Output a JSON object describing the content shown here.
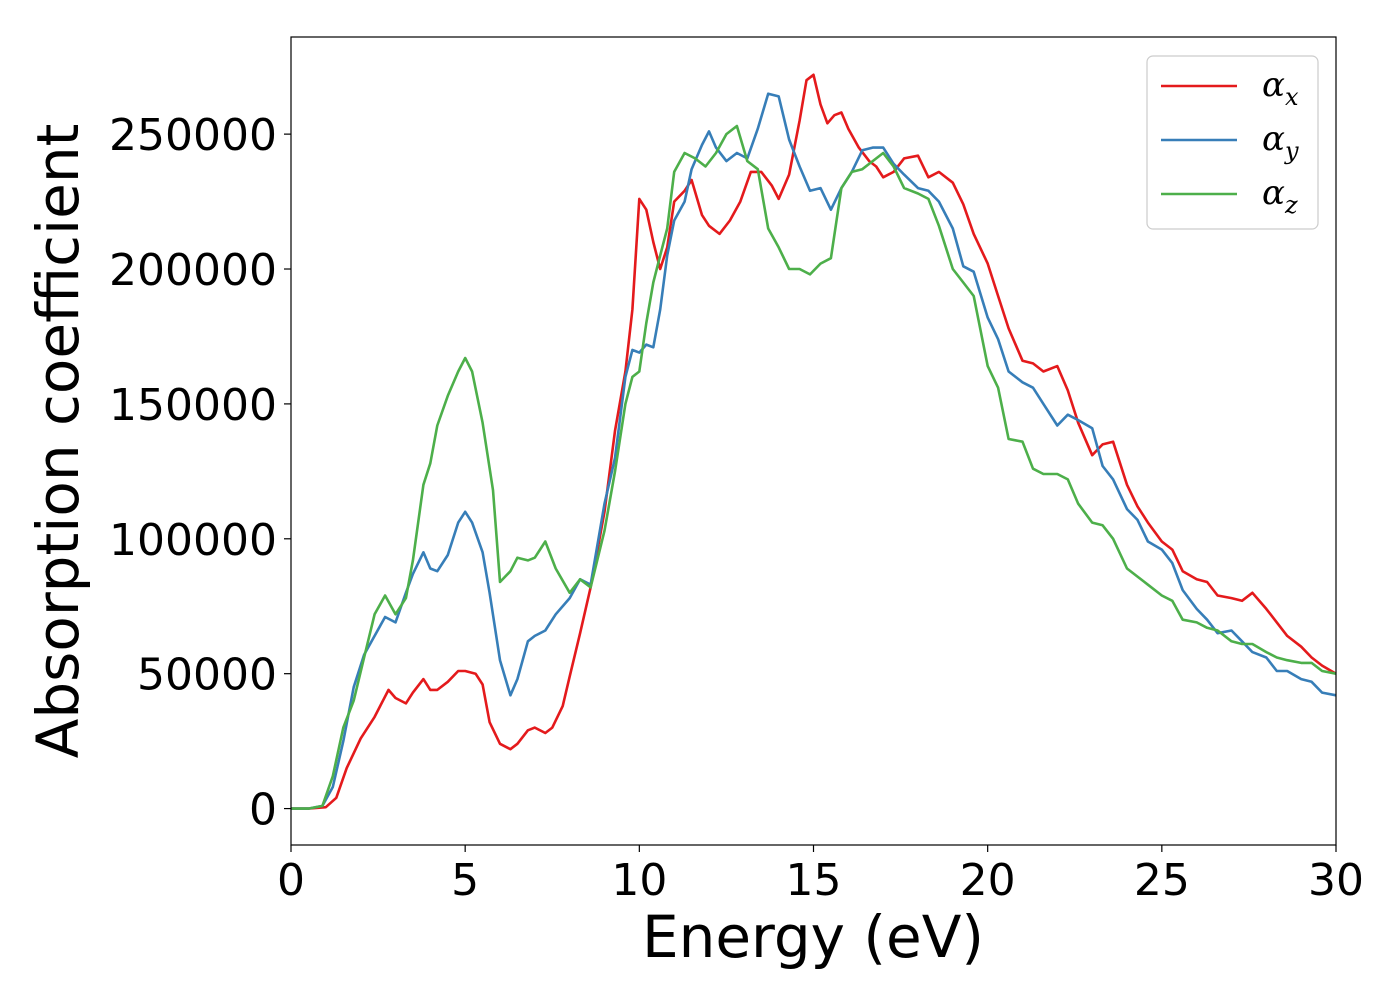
{
  "chart_data": {
    "type": "line",
    "title": "",
    "xlabel": "Energy (eV)",
    "ylabel": "Absorption coefficient",
    "xlim": [
      0,
      30
    ],
    "ylim": [
      -13500,
      286000
    ],
    "xticks": [
      0,
      5,
      10,
      15,
      20,
      25,
      30
    ],
    "yticks": [
      0,
      50000,
      100000,
      150000,
      200000,
      250000
    ],
    "grid": false,
    "legend": "top-right",
    "series": [
      {
        "name": "αx",
        "sym": "α",
        "sub": "x",
        "color": "#e41a1c",
        "x": [
          0,
          0.5,
          1.0,
          1.3,
          1.6,
          2.0,
          2.4,
          2.8,
          3.0,
          3.3,
          3.5,
          3.8,
          4.0,
          4.2,
          4.5,
          4.8,
          5.0,
          5.3,
          5.5,
          5.7,
          6.0,
          6.3,
          6.5,
          6.8,
          7.0,
          7.3,
          7.5,
          7.8,
          8.0,
          8.3,
          8.6,
          9.0,
          9.3,
          9.6,
          9.8,
          10.0,
          10.2,
          10.4,
          10.6,
          10.8,
          11.0,
          11.3,
          11.5,
          11.8,
          12.0,
          12.3,
          12.6,
          12.9,
          13.2,
          13.5,
          13.8,
          14.0,
          14.3,
          14.6,
          14.8,
          15.0,
          15.2,
          15.4,
          15.6,
          15.8,
          16.0,
          16.3,
          16.6,
          16.8,
          17.0,
          17.3,
          17.6,
          18.0,
          18.3,
          18.6,
          19.0,
          19.3,
          19.6,
          20.0,
          20.3,
          20.6,
          21.0,
          21.3,
          21.6,
          22.0,
          22.3,
          22.6,
          23.0,
          23.3,
          23.6,
          24.0,
          24.3,
          24.6,
          25.0,
          25.3,
          25.6,
          26.0,
          26.3,
          26.6,
          27.0,
          27.3,
          27.6,
          28.0,
          28.3,
          28.6,
          29.0,
          29.3,
          29.6,
          30.0
        ],
        "y": [
          0,
          0,
          500,
          4000,
          15000,
          26000,
          34000,
          44000,
          41000,
          39000,
          43000,
          48000,
          44000,
          44000,
          47000,
          51000,
          51000,
          50000,
          46000,
          32000,
          24000,
          22000,
          24000,
          29000,
          30000,
          28000,
          30000,
          38000,
          49000,
          65000,
          82000,
          110000,
          140000,
          162000,
          185000,
          226000,
          222000,
          210000,
          200000,
          208000,
          225000,
          229000,
          233000,
          220000,
          216000,
          213000,
          218000,
          225000,
          236000,
          236000,
          231000,
          226000,
          235000,
          255000,
          270000,
          272000,
          261000,
          254000,
          257000,
          258000,
          252000,
          245000,
          240000,
          238000,
          234000,
          236000,
          241000,
          242000,
          234000,
          236000,
          232000,
          224000,
          213000,
          202000,
          190000,
          178000,
          166000,
          165000,
          162000,
          164000,
          155000,
          143000,
          131000,
          135000,
          136000,
          120000,
          112000,
          106000,
          99000,
          96000,
          88000,
          85000,
          84000,
          79000,
          78000,
          77000,
          80000,
          74000,
          69000,
          64000,
          60000,
          56000,
          53000,
          50000
        ]
      },
      {
        "name": "αy",
        "sym": "α",
        "sub": "y",
        "color": "#377eb8",
        "x": [
          0,
          0.5,
          0.9,
          1.2,
          1.5,
          1.8,
          2.1,
          2.4,
          2.7,
          3.0,
          3.3,
          3.5,
          3.8,
          4.0,
          4.2,
          4.5,
          4.8,
          5.0,
          5.2,
          5.5,
          5.7,
          6.0,
          6.3,
          6.5,
          6.8,
          7.0,
          7.3,
          7.6,
          8.0,
          8.3,
          8.6,
          9.0,
          9.3,
          9.6,
          9.8,
          10.0,
          10.2,
          10.4,
          10.6,
          10.8,
          11.0,
          11.3,
          11.5,
          11.8,
          12.0,
          12.2,
          12.5,
          12.8,
          13.1,
          13.4,
          13.7,
          14.0,
          14.3,
          14.6,
          14.9,
          15.2,
          15.5,
          15.8,
          16.1,
          16.4,
          16.7,
          17.0,
          17.3,
          17.6,
          18.0,
          18.3,
          18.6,
          19.0,
          19.3,
          19.6,
          20.0,
          20.3,
          20.6,
          21.0,
          21.3,
          21.6,
          22.0,
          22.3,
          22.6,
          23.0,
          23.3,
          23.6,
          24.0,
          24.3,
          24.6,
          25.0,
          25.3,
          25.6,
          26.0,
          26.3,
          26.6,
          27.0,
          27.3,
          27.6,
          28.0,
          28.3,
          28.6,
          29.0,
          29.3,
          29.6,
          30.0
        ],
        "y": [
          0,
          0,
          1000,
          8000,
          25000,
          45000,
          57000,
          64000,
          71000,
          69000,
          80000,
          87000,
          95000,
          89000,
          88000,
          94000,
          106000,
          110000,
          106000,
          95000,
          80000,
          55000,
          42000,
          48000,
          62000,
          64000,
          66000,
          72000,
          78000,
          85000,
          83000,
          113000,
          130000,
          160000,
          170000,
          169000,
          172000,
          171000,
          185000,
          205000,
          218000,
          225000,
          237000,
          246000,
          251000,
          245000,
          240000,
          243000,
          241000,
          252000,
          265000,
          264000,
          248000,
          238000,
          229000,
          230000,
          222000,
          230000,
          236000,
          244000,
          245000,
          245000,
          239000,
          235000,
          230000,
          229000,
          225000,
          215000,
          201000,
          199000,
          182000,
          174000,
          162000,
          158000,
          156000,
          150000,
          142000,
          146000,
          144000,
          141000,
          127000,
          122000,
          111000,
          107000,
          99000,
          96000,
          91000,
          81000,
          74000,
          70000,
          65000,
          66000,
          62000,
          58000,
          56000,
          51000,
          51000,
          48000,
          47000,
          43000,
          42000
        ]
      },
      {
        "name": "αz",
        "sym": "α",
        "sub": "z",
        "color": "#4daf4a",
        "x": [
          0,
          0.5,
          0.9,
          1.2,
          1.5,
          1.8,
          2.1,
          2.4,
          2.7,
          3.0,
          3.3,
          3.5,
          3.8,
          4.0,
          4.2,
          4.5,
          4.8,
          5.0,
          5.2,
          5.5,
          5.8,
          6.0,
          6.3,
          6.5,
          6.8,
          7.0,
          7.3,
          7.6,
          8.0,
          8.3,
          8.6,
          9.0,
          9.3,
          9.6,
          9.8,
          10.0,
          10.2,
          10.4,
          10.6,
          10.8,
          11.0,
          11.3,
          11.6,
          11.9,
          12.2,
          12.5,
          12.8,
          13.1,
          13.4,
          13.7,
          14.0,
          14.3,
          14.6,
          14.9,
          15.2,
          15.5,
          15.8,
          16.1,
          16.4,
          16.7,
          17.0,
          17.3,
          17.6,
          18.0,
          18.3,
          18.6,
          19.0,
          19.3,
          19.6,
          20.0,
          20.3,
          20.6,
          21.0,
          21.3,
          21.6,
          22.0,
          22.3,
          22.6,
          23.0,
          23.3,
          23.6,
          24.0,
          24.3,
          24.6,
          25.0,
          25.3,
          25.6,
          26.0,
          26.3,
          26.6,
          27.0,
          27.3,
          27.6,
          28.0,
          28.3,
          28.6,
          29.0,
          29.3,
          29.6,
          30.0
        ],
        "y": [
          0,
          0,
          1000,
          12000,
          30000,
          40000,
          56000,
          72000,
          79000,
          72000,
          78000,
          92000,
          120000,
          128000,
          142000,
          153000,
          162000,
          167000,
          162000,
          143000,
          118000,
          84000,
          88000,
          93000,
          92000,
          93000,
          99000,
          89000,
          80000,
          85000,
          82000,
          103000,
          125000,
          150000,
          160000,
          162000,
          180000,
          195000,
          205000,
          215000,
          236000,
          243000,
          241000,
          238000,
          243000,
          250000,
          253000,
          240000,
          237000,
          215000,
          208000,
          200000,
          200000,
          198000,
          202000,
          204000,
          230000,
          236000,
          237000,
          240000,
          243000,
          238000,
          230000,
          228000,
          226000,
          216000,
          200000,
          195000,
          190000,
          164000,
          156000,
          137000,
          136000,
          126000,
          124000,
          124000,
          122000,
          113000,
          106000,
          105000,
          100000,
          89000,
          86000,
          83000,
          79000,
          77000,
          70000,
          69000,
          67000,
          66000,
          62000,
          61000,
          61000,
          58000,
          56000,
          55000,
          54000,
          54000,
          51000,
          50000
        ]
      }
    ]
  }
}
